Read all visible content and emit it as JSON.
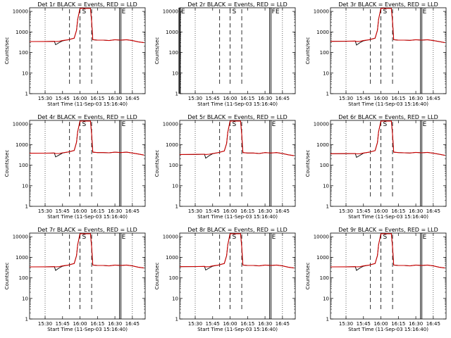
{
  "common": {
    "xlabel": "Start Time (11-Sep-03 15:16:40)",
    "ylabel": "Counts/sec",
    "x_ticks": [
      "15:30",
      "15:45",
      "16:00",
      "16:15",
      "16:30",
      "16:45"
    ],
    "y_ticks": [
      "1",
      "10",
      "100",
      "1000",
      "10000"
    ],
    "colors": {
      "events": "#000000",
      "lld": "#cc0000"
    }
  },
  "chart_data": [
    {
      "type": "line",
      "title": "Det 1r BLACK = Events, RED = LLD",
      "x_unit": "UT time",
      "x": [
        "15:16",
        "15:30",
        "15:38",
        "15:39",
        "15:42",
        "15:45",
        "15:50",
        "15:55",
        "15:57",
        "15:58",
        "16:00",
        "16:05",
        "16:09",
        "16:10",
        "16:11",
        "16:15",
        "16:20",
        "16:25",
        "16:30",
        "16:35",
        "16:40",
        "16:45",
        "16:50",
        "16:55"
      ],
      "ylim": [
        1,
        15000
      ],
      "y_scale": "log",
      "series": [
        {
          "name": "Events",
          "values": [
            340,
            340,
            350,
            240,
            300,
            370,
            420,
            500,
            1200,
            4000,
            14000,
            14000,
            14000,
            3000,
            420,
            400,
            400,
            380,
            420,
            400,
            420,
            380,
            330,
            300
          ]
        },
        {
          "name": "LLD",
          "values": [
            340,
            345,
            350,
            340,
            350,
            380,
            420,
            500,
            1200,
            4000,
            14000,
            14000,
            14000,
            3000,
            420,
            400,
            400,
            380,
            420,
            400,
            420,
            380,
            330,
            300
          ]
        }
      ],
      "markers": [
        {
          "label": "S",
          "position": "16:00",
          "style": "dashed"
        },
        {
          "label": "E",
          "position": "16:34",
          "style": "solid"
        }
      ]
    },
    {
      "type": "line",
      "title": "Det 2r BLACK = Events, RED = LLD",
      "x_unit": "UT time",
      "x": [],
      "ylim": [
        1,
        15000
      ],
      "y_scale": "log",
      "series": [],
      "markers": [
        {
          "label": "E",
          "position": "15:16",
          "style": "solid"
        },
        {
          "label": "S",
          "position": "16:00",
          "style": "dashed"
        },
        {
          "label": "FE",
          "position": "16:34",
          "style": "solid"
        }
      ]
    },
    {
      "type": "line",
      "title": "Det 3r BLACK = Events, RED = LLD",
      "x_unit": "UT time",
      "x": [
        "15:16",
        "15:30",
        "15:38",
        "15:39",
        "15:42",
        "15:45",
        "15:50",
        "15:55",
        "15:57",
        "15:58",
        "16:00",
        "16:05",
        "16:09",
        "16:10",
        "16:11",
        "16:15",
        "16:20",
        "16:25",
        "16:30",
        "16:35",
        "16:40",
        "16:45",
        "16:50",
        "16:55"
      ],
      "ylim": [
        1,
        15000
      ],
      "y_scale": "log",
      "series": [
        {
          "name": "Events",
          "values": [
            350,
            350,
            360,
            230,
            300,
            370,
            420,
            500,
            1200,
            4000,
            14000,
            14000,
            14000,
            3000,
            420,
            400,
            400,
            390,
            420,
            400,
            420,
            380,
            340,
            300
          ]
        },
        {
          "name": "LLD",
          "values": [
            350,
            355,
            360,
            345,
            350,
            380,
            420,
            500,
            1200,
            4000,
            14000,
            14000,
            14000,
            3000,
            420,
            400,
            400,
            390,
            420,
            400,
            420,
            380,
            340,
            300
          ]
        }
      ],
      "markers": [
        {
          "label": "S",
          "position": "16:00",
          "style": "dashed"
        },
        {
          "label": "E",
          "position": "16:34",
          "style": "solid"
        }
      ]
    },
    {
      "type": "line",
      "title": "Det 4r BLACK = Events, RED = LLD",
      "x_unit": "UT time",
      "x": [
        "15:16",
        "15:30",
        "15:38",
        "15:39",
        "15:42",
        "15:45",
        "15:50",
        "15:55",
        "15:57",
        "15:58",
        "16:00",
        "16:05",
        "16:09",
        "16:10",
        "16:11",
        "16:15",
        "16:20",
        "16:25",
        "16:30",
        "16:35",
        "16:40",
        "16:45",
        "16:50",
        "16:55"
      ],
      "ylim": [
        1,
        15000
      ],
      "y_scale": "log",
      "series": [
        {
          "name": "Events",
          "values": [
            380,
            380,
            390,
            250,
            310,
            390,
            440,
            520,
            1300,
            4200,
            14000,
            14000,
            14000,
            3000,
            430,
            410,
            410,
            400,
            430,
            410,
            430,
            390,
            350,
            310
          ]
        },
        {
          "name": "LLD",
          "values": [
            380,
            385,
            390,
            370,
            370,
            400,
            440,
            520,
            1300,
            4200,
            14000,
            14000,
            14000,
            3000,
            430,
            410,
            410,
            400,
            430,
            410,
            430,
            390,
            350,
            310
          ]
        }
      ],
      "markers": [
        {
          "label": "S",
          "position": "16:00",
          "style": "dashed"
        },
        {
          "label": "E",
          "position": "16:34",
          "style": "solid"
        }
      ]
    },
    {
      "type": "line",
      "title": "Det 5r BLACK = Events, RED = LLD",
      "x_unit": "UT time",
      "x": [
        "15:16",
        "15:30",
        "15:38",
        "15:39",
        "15:42",
        "15:45",
        "15:50",
        "15:55",
        "15:57",
        "15:58",
        "16:00",
        "16:05",
        "16:09",
        "16:10",
        "16:11",
        "16:15",
        "16:20",
        "16:25",
        "16:30",
        "16:35",
        "16:40",
        "16:45",
        "16:50",
        "16:55"
      ],
      "ylim": [
        1,
        15000
      ],
      "y_scale": "log",
      "series": [
        {
          "name": "Events",
          "values": [
            330,
            330,
            340,
            220,
            290,
            360,
            410,
            490,
            1150,
            3900,
            14000,
            14000,
            14000,
            2900,
            410,
            390,
            390,
            370,
            410,
            390,
            410,
            370,
            320,
            290
          ]
        },
        {
          "name": "LLD",
          "values": [
            330,
            335,
            340,
            330,
            340,
            370,
            410,
            490,
            1150,
            3900,
            14000,
            14000,
            14000,
            2900,
            410,
            390,
            390,
            370,
            410,
            390,
            410,
            370,
            320,
            290
          ]
        }
      ],
      "markers": [
        {
          "label": "S",
          "position": "16:00",
          "style": "dashed"
        },
        {
          "label": "E",
          "position": "16:34",
          "style": "solid"
        }
      ]
    },
    {
      "type": "line",
      "title": "Det 6r BLACK = Events, RED = LLD",
      "x_unit": "UT time",
      "x": [
        "15:16",
        "15:30",
        "15:38",
        "15:39",
        "15:42",
        "15:45",
        "15:50",
        "15:55",
        "15:57",
        "15:58",
        "16:00",
        "16:05",
        "16:09",
        "16:10",
        "16:11",
        "16:15",
        "16:20",
        "16:25",
        "16:30",
        "16:35",
        "16:40",
        "16:45",
        "16:50",
        "16:55"
      ],
      "ylim": [
        1,
        15000
      ],
      "y_scale": "log",
      "series": [
        {
          "name": "Events",
          "values": [
            360,
            360,
            370,
            240,
            300,
            380,
            430,
            510,
            1250,
            4100,
            14000,
            14000,
            14000,
            3000,
            430,
            410,
            400,
            390,
            420,
            400,
            420,
            380,
            340,
            300
          ]
        },
        {
          "name": "LLD",
          "values": [
            360,
            365,
            370,
            355,
            360,
            390,
            430,
            510,
            1250,
            4100,
            14000,
            14000,
            14000,
            3000,
            430,
            410,
            400,
            390,
            420,
            400,
            420,
            380,
            340,
            300
          ]
        }
      ],
      "markers": [
        {
          "label": "S",
          "position": "16:00",
          "style": "dashed"
        },
        {
          "label": "E",
          "position": "16:34",
          "style": "solid"
        }
      ]
    },
    {
      "type": "line",
      "title": "Det 7r BLACK = Events, RED = LLD",
      "x_unit": "UT time",
      "x": [
        "15:16",
        "15:30",
        "15:38",
        "15:39",
        "15:42",
        "15:45",
        "15:50",
        "15:55",
        "15:57",
        "15:58",
        "16:00",
        "16:05",
        "16:09",
        "16:10",
        "16:11",
        "16:15",
        "16:20",
        "16:25",
        "16:30",
        "16:35",
        "16:40",
        "16:45",
        "16:50",
        "16:55"
      ],
      "ylim": [
        1,
        15000
      ],
      "y_scale": "log",
      "series": [
        {
          "name": "Events",
          "values": [
            340,
            340,
            350,
            230,
            300,
            370,
            420,
            500,
            1200,
            4000,
            14000,
            14000,
            14000,
            3000,
            420,
            400,
            400,
            380,
            420,
            400,
            420,
            380,
            330,
            300
          ]
        },
        {
          "name": "LLD",
          "values": [
            340,
            345,
            350,
            340,
            350,
            380,
            420,
            500,
            1200,
            4000,
            14000,
            14000,
            14000,
            3000,
            420,
            400,
            400,
            380,
            420,
            400,
            420,
            380,
            330,
            300
          ]
        }
      ],
      "markers": [
        {
          "label": "S",
          "position": "16:00",
          "style": "dashed"
        },
        {
          "label": "E",
          "position": "16:34",
          "style": "solid"
        }
      ]
    },
    {
      "type": "line",
      "title": "Det 8r BLACK = Events, RED = LLD",
      "x_unit": "UT time",
      "x": [
        "15:16",
        "15:30",
        "15:38",
        "15:39",
        "15:42",
        "15:45",
        "15:50",
        "15:55",
        "15:57",
        "15:58",
        "16:00",
        "16:05",
        "16:09",
        "16:10",
        "16:11",
        "16:15",
        "16:20",
        "16:25",
        "16:30",
        "16:35",
        "16:40",
        "16:45",
        "16:50",
        "16:55"
      ],
      "ylim": [
        1,
        15000
      ],
      "y_scale": "log",
      "series": [
        {
          "name": "Events",
          "values": [
            350,
            350,
            360,
            240,
            300,
            370,
            420,
            500,
            1200,
            4000,
            14000,
            14000,
            14000,
            3000,
            420,
            400,
            400,
            380,
            420,
            400,
            420,
            380,
            330,
            300
          ]
        },
        {
          "name": "LLD",
          "values": [
            350,
            355,
            360,
            345,
            350,
            380,
            420,
            500,
            1200,
            4000,
            14000,
            14000,
            14000,
            3000,
            420,
            400,
            400,
            380,
            420,
            400,
            420,
            380,
            330,
            300
          ]
        }
      ],
      "markers": [
        {
          "label": "S",
          "position": "16:00",
          "style": "dashed"
        },
        {
          "label": "E",
          "position": "16:34",
          "style": "solid"
        }
      ]
    },
    {
      "type": "line",
      "title": "Det 9r BLACK = Events, RED = LLD",
      "x_unit": "UT time",
      "x": [
        "15:16",
        "15:30",
        "15:38",
        "15:39",
        "15:42",
        "15:45",
        "15:50",
        "15:55",
        "15:57",
        "15:58",
        "16:00",
        "16:05",
        "16:09",
        "16:10",
        "16:11",
        "16:15",
        "16:20",
        "16:25",
        "16:30",
        "16:35",
        "16:40",
        "16:45",
        "16:50",
        "16:55"
      ],
      "ylim": [
        1,
        15000
      ],
      "y_scale": "log",
      "series": [
        {
          "name": "Events",
          "values": [
            340,
            340,
            350,
            230,
            300,
            370,
            420,
            500,
            1200,
            4000,
            14000,
            14000,
            14000,
            3000,
            420,
            400,
            400,
            380,
            420,
            400,
            420,
            380,
            330,
            300
          ]
        },
        {
          "name": "LLD",
          "values": [
            340,
            345,
            350,
            340,
            350,
            380,
            420,
            500,
            1200,
            4000,
            14000,
            14000,
            14000,
            3000,
            420,
            400,
            400,
            380,
            420,
            400,
            420,
            380,
            330,
            300
          ]
        }
      ],
      "markers": [
        {
          "label": "S",
          "position": "16:00",
          "style": "dashed"
        },
        {
          "label": "E",
          "position": "16:34",
          "style": "solid"
        }
      ]
    }
  ]
}
